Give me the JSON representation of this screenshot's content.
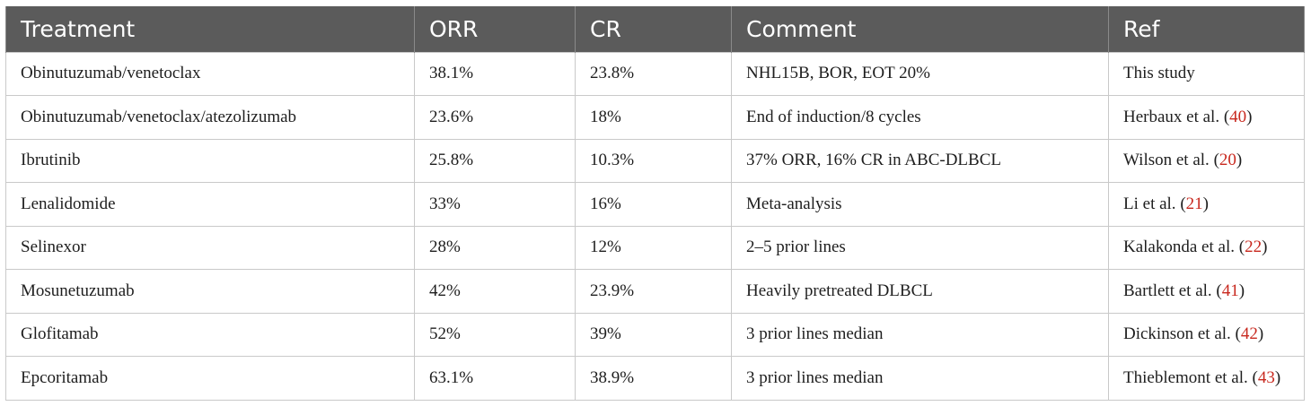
{
  "table": {
    "headers": [
      "Treatment",
      "ORR",
      "CR",
      "Comment",
      "Ref"
    ],
    "rows": [
      {
        "treatment": "Obinutuzumab/venetoclax",
        "orr": "38.1%",
        "cr": "23.8%",
        "comment": "NHL15B, BOR, EOT 20%",
        "ref_text": "This study",
        "ref_num": ""
      },
      {
        "treatment": "Obinutuzumab/venetoclax/atezolizumab",
        "orr": "23.6%",
        "cr": "18%",
        "comment": "End of induction/8 cycles",
        "ref_text": "Herbaux et al.",
        "ref_num": "40"
      },
      {
        "treatment": "Ibrutinib",
        "orr": "25.8%",
        "cr": "10.3%",
        "comment": "37% ORR, 16% CR in ABC-DLBCL",
        "ref_text": "Wilson et al.",
        "ref_num": "20"
      },
      {
        "treatment": "Lenalidomide",
        "orr": "33%",
        "cr": "16%",
        "comment": "Meta-analysis",
        "ref_text": "Li et al.",
        "ref_num": "21"
      },
      {
        "treatment": "Selinexor",
        "orr": "28%",
        "cr": "12%",
        "comment": "2–5 prior lines",
        "ref_text": "Kalakonda et al.",
        "ref_num": "22"
      },
      {
        "treatment": "Mosunetuzumab",
        "orr": "42%",
        "cr": "23.9%",
        "comment": "Heavily pretreated DLBCL",
        "ref_text": "Bartlett et al.",
        "ref_num": "41"
      },
      {
        "treatment": "Glofitamab",
        "orr": "52%",
        "cr": "39%",
        "comment": "3 prior lines median",
        "ref_text": "Dickinson et al.",
        "ref_num": "42"
      },
      {
        "treatment": "Epcoritamab",
        "orr": "63.1%",
        "cr": "38.9%",
        "comment": "3 prior lines median",
        "ref_text": "Thieblemont et al.",
        "ref_num": "43"
      }
    ]
  },
  "colors": {
    "header_bg": "#5b5b5b",
    "header_text": "#ffffff",
    "ref_link": "#c8281e",
    "grid": "#c9c9c9"
  }
}
